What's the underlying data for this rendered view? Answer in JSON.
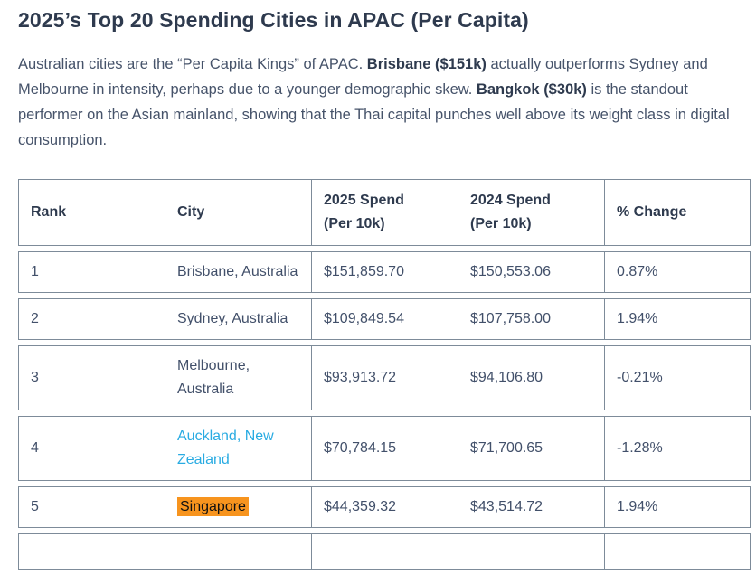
{
  "page": {
    "title": "2025’s Top 20 Spending Cities in APAC (Per Capita)",
    "intro": {
      "part1": "Australian cities are the “Per Capita Kings” of APAC. ",
      "bold1": "Brisbane ($151k)",
      "part2": " actually outperforms Sydney and Melbourne in intensity, perhaps due to a younger demographic skew. ",
      "bold2": "Bangkok ($30k)",
      "part3": " is the standout performer on the Asian mainland, showing that the Thai capital punches well above its weight class in digital consumption."
    }
  },
  "table": {
    "columns": [
      "Rank",
      "City",
      "2025 Spend\n(Per 10k)",
      "2024 Spend\n(Per 10k)",
      "% Change"
    ],
    "rows": [
      {
        "rank": "1",
        "city": "Brisbane, Australia",
        "spend_2025": "$151,859.70",
        "spend_2024": "$150,553.06",
        "pct_change": "0.87%",
        "city_style": "normal"
      },
      {
        "rank": "2",
        "city": "Sydney, Australia",
        "spend_2025": "$109,849.54",
        "spend_2024": "$107,758.00",
        "pct_change": "1.94%",
        "city_style": "normal"
      },
      {
        "rank": "3",
        "city": "Melbourne, Australia",
        "spend_2025": "$93,913.72",
        "spend_2024": "$94,106.80",
        "pct_change": "-0.21%",
        "city_style": "normal"
      },
      {
        "rank": "4",
        "city": "Auckland, New Zealand",
        "spend_2025": "$70,784.15",
        "spend_2024": "$71,700.65",
        "pct_change": "-1.28%",
        "city_style": "link"
      },
      {
        "rank": "5",
        "city": "Singapore",
        "spend_2025": "$44,359.32",
        "spend_2024": "$43,514.72",
        "pct_change": "1.94%",
        "city_style": "highlight"
      }
    ]
  },
  "colors": {
    "heading_text": "#2e3a4e",
    "body_text": "#46536a",
    "table_border": "#7d8b99",
    "link_blue": "#29abe2",
    "highlight_orange": "#f7941e"
  }
}
